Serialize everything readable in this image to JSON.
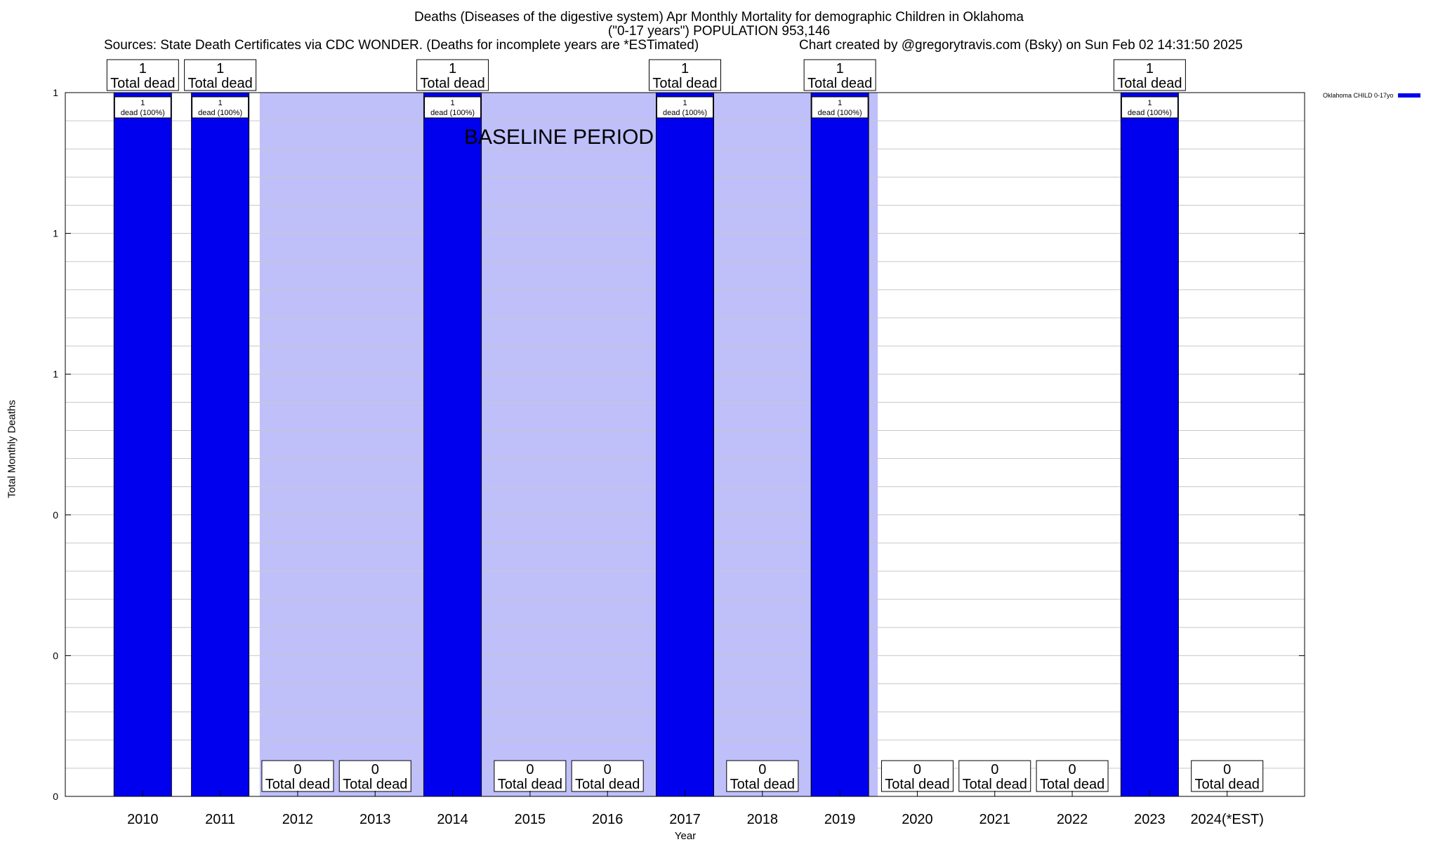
{
  "header": {
    "title_line1": "Deaths (Diseases of the digestive system) Apr Monthly Mortality for demographic Children in Oklahoma",
    "title_line2": "(\"0-17 years\") POPULATION 953,146",
    "sources": "Sources: State Death Certificates via CDC WONDER. (Deaths for incomplete years are *ESTimated)",
    "credit": "Chart created by @gregorytravis.com (Bsky) on Sun Feb 02 14:31:50 2025"
  },
  "chart_data": {
    "type": "bar",
    "xlabel": "Year",
    "ylabel": "Total Monthly Deaths",
    "ylim": [
      0,
      1
    ],
    "y_tick_labels": [
      "0",
      "0",
      "0",
      "1",
      "1",
      "1"
    ],
    "grid": true,
    "categories": [
      "2010",
      "2011",
      "2012",
      "2013",
      "2014",
      "2015",
      "2016",
      "2017",
      "2018",
      "2019",
      "2020",
      "2021",
      "2022",
      "2023",
      "2024(*EST)"
    ],
    "series": [
      {
        "name": "Oklahoma CHILD 0-17yo",
        "color": "#0000ee",
        "values": [
          1,
          1,
          0,
          0,
          1,
          0,
          0,
          1,
          0,
          1,
          0,
          0,
          0,
          1,
          0
        ]
      }
    ],
    "top_labels": [
      "1\nTotal dead",
      "1\nTotal dead",
      "0\nTotal dead",
      "0\nTotal dead",
      "1\nTotal dead",
      "0\nTotal dead",
      "0\nTotal dead",
      "1\nTotal dead",
      "0\nTotal dead",
      "1\nTotal dead",
      "0\nTotal dead",
      "0\nTotal dead",
      "0\nTotal dead",
      "1\nTotal dead",
      "0\nTotal dead"
    ],
    "inner_labels": [
      "1\ndead (100%)",
      "1\ndead (100%)",
      "",
      "",
      "1\ndead (100%)",
      "",
      "",
      "1\ndead (100%)",
      "",
      "1\ndead (100%)",
      "",
      "",
      "",
      "1\ndead (100%)",
      ""
    ],
    "baseline": {
      "label": "BASELINE PERIOD",
      "from_category": "2012",
      "to_category": "2019",
      "color": "#bfbffa"
    },
    "legend_position": "top-right"
  }
}
